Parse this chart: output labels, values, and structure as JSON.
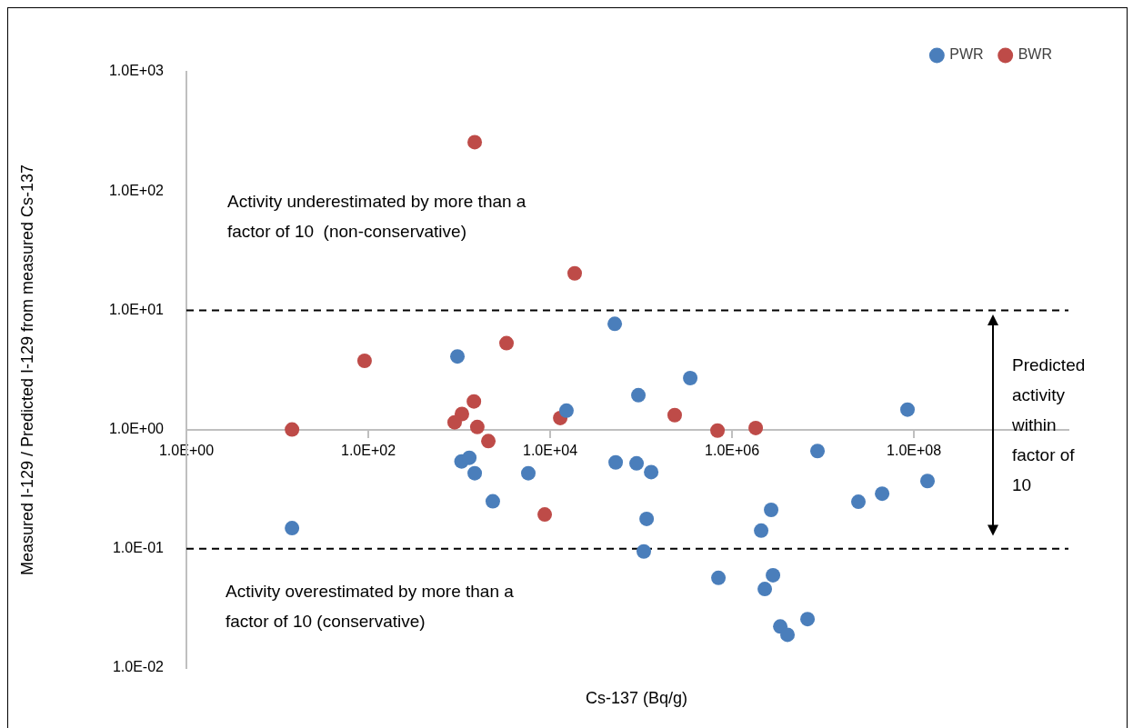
{
  "chart_data": {
    "type": "scatter",
    "xlabel": "Cs-137 (Bq/g)",
    "ylabel": "Measured I-129 / Predicted I-129 from measured Cs-137",
    "log": "xy",
    "grid": false,
    "legend": "top right",
    "marker": "circle",
    "xlim": [
      1,
      5000000000
    ],
    "ylim": [
      0.01,
      1000
    ],
    "xticks": [
      {
        "value": 1,
        "label": "1.0E+00"
      },
      {
        "value": 100,
        "label": "1.0E+02"
      },
      {
        "value": 10000,
        "label": "1.0E+04"
      },
      {
        "value": 1000000,
        "label": "1.0E+06"
      },
      {
        "value": 100000000,
        "label": "1.0E+08"
      }
    ],
    "yticks": [
      {
        "value": 0.01,
        "label": "1.0E-02"
      },
      {
        "value": 0.1,
        "label": "1.0E-01"
      },
      {
        "value": 1,
        "label": "1.0E+00"
      },
      {
        "value": 10,
        "label": "1.0E+01"
      },
      {
        "value": 100,
        "label": "1.0E+02"
      },
      {
        "value": 1000,
        "label": "1.0E+03"
      }
    ],
    "series": [
      {
        "name": "PWR",
        "color": "#4a7ebb",
        "x": [
          14.5,
          955,
          1060,
          1290,
          1480,
          2340,
          5750,
          15100,
          51300,
          52500,
          93300,
          89100,
          129000,
          115000,
          107000,
          347000,
          708000,
          8700000,
          2690000,
          2090000,
          2820000,
          2290000,
          3390000,
          4070000,
          6760000,
          24500000,
          44700000,
          85000000,
          141000000
        ],
        "values": [
          0.149,
          4.1,
          0.54,
          0.58,
          0.43,
          0.25,
          0.43,
          1.44,
          7.7,
          0.53,
          1.94,
          0.52,
          0.44,
          0.178,
          0.095,
          2.7,
          0.057,
          0.66,
          0.212,
          0.142,
          0.06,
          0.046,
          0.0223,
          0.019,
          0.0257,
          0.248,
          0.29,
          1.47,
          0.37
        ]
      },
      {
        "name": "BWR",
        "color": "#be4b48",
        "x": [
          14.5,
          91,
          1480,
          18600,
          3310,
          1450,
          1070,
          890,
          1580,
          2090,
          8710,
          12900,
          234000,
          692000,
          1820000
        ],
        "values": [
          1.0,
          3.77,
          257,
          20.4,
          5.3,
          1.72,
          1.35,
          1.15,
          1.05,
          0.8,
          0.194,
          1.25,
          1.32,
          0.98,
          1.03
        ]
      }
    ],
    "ref_lines": [
      {
        "axis": "y",
        "value": 10,
        "color": "#000000",
        "line_style": "dashed"
      },
      {
        "axis": "y",
        "value": 0.1,
        "color": "#000000",
        "line_style": "dashed"
      }
    ],
    "annotations": [
      "Activity underestimated by more than a factor of 10  (non-conservative)",
      "Activity overestimated by more than a factor of 10 (conservative)",
      "Predicted activity within factor of 10"
    ]
  }
}
